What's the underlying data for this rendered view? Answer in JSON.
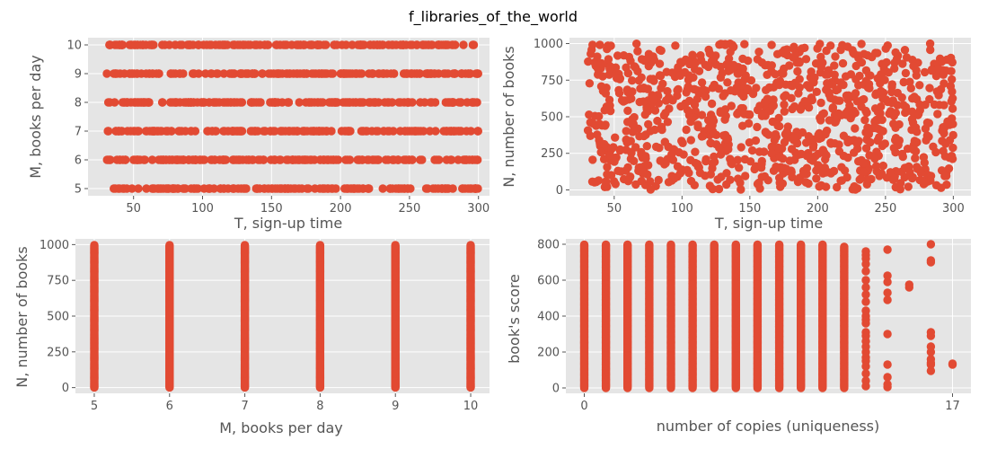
{
  "figure": {
    "title": "f_libraries_of_the_world"
  },
  "colors": {
    "marker": "#E24A33",
    "panel": "#e5e5e5",
    "grid": "#ffffff",
    "text": "#555555"
  },
  "chart_data": [
    {
      "type": "scatter",
      "title": "",
      "xlabel": "T, sign-up time",
      "ylabel": "M, books per day",
      "xlim": [
        17,
        308
      ],
      "ylim": [
        4.75,
        10.25
      ],
      "xticks": [
        50,
        100,
        150,
        200,
        250,
        300
      ],
      "yticks": [
        5,
        6,
        7,
        8,
        9,
        10
      ],
      "grid": true,
      "legend": "none",
      "x_range": [
        30,
        300
      ],
      "y_levels": [
        5,
        6,
        7,
        8,
        9,
        10
      ],
      "approx_points": 1000
    },
    {
      "type": "scatter",
      "title": "",
      "xlabel": "T, sign-up time",
      "ylabel": "N, number of books",
      "xlim": [
        17,
        313
      ],
      "ylim": [
        -40,
        1040
      ],
      "xticks": [
        50,
        100,
        150,
        200,
        250,
        300
      ],
      "yticks": [
        0,
        250,
        500,
        750,
        1000
      ],
      "grid": true,
      "legend": "none",
      "x_range": [
        30,
        300
      ],
      "y_range": [
        0,
        1000
      ],
      "approx_points": 1000
    },
    {
      "type": "scatter",
      "title": "",
      "xlabel": "M, books per day",
      "ylabel": "N, number of books",
      "xlim": [
        4.75,
        10.25
      ],
      "ylim": [
        -40,
        1040
      ],
      "xticks": [
        5,
        6,
        7,
        8,
        9,
        10
      ],
      "yticks": [
        0,
        250,
        500,
        750,
        1000
      ],
      "grid": true,
      "legend": "none",
      "x_levels": [
        5,
        6,
        7,
        8,
        9,
        10
      ],
      "y_range": [
        0,
        1000
      ],
      "approx_points": 1000
    },
    {
      "type": "scatter",
      "title": "",
      "xlabel": "number of copies (uniqueness)",
      "ylabel": "book's score",
      "xlim": [
        -0.85,
        17.85
      ],
      "ylim": [
        -30,
        830
      ],
      "xticks": [
        0,
        17
      ],
      "yticks": [
        0,
        200,
        400,
        600,
        800
      ],
      "grid": true,
      "legend": "none",
      "columns": [
        {
          "x": 0,
          "dense": true,
          "max": 800
        },
        {
          "x": 1,
          "dense": true,
          "max": 800
        },
        {
          "x": 2,
          "dense": true,
          "max": 800
        },
        {
          "x": 3,
          "dense": true,
          "max": 800
        },
        {
          "x": 4,
          "dense": true,
          "max": 800
        },
        {
          "x": 5,
          "dense": true,
          "max": 800
        },
        {
          "x": 6,
          "dense": true,
          "max": 800
        },
        {
          "x": 7,
          "dense": true,
          "max": 800
        },
        {
          "x": 8,
          "dense": true,
          "max": 800
        },
        {
          "x": 9,
          "dense": true,
          "max": 800
        },
        {
          "x": 10,
          "dense": true,
          "max": 800
        },
        {
          "x": 11,
          "dense": true,
          "max": 800
        },
        {
          "x": 12,
          "dense": true,
          "max": 790
        },
        {
          "x": 13,
          "dense": false,
          "values": [
            10,
            40,
            80,
            120,
            150,
            170,
            200,
            230,
            260,
            290,
            310,
            360,
            380,
            400,
            430,
            480,
            520,
            560,
            600,
            650,
            690,
            720,
            740,
            760
          ]
        },
        {
          "x": 14,
          "dense": false,
          "values": [
            5,
            20,
            60,
            130,
            300,
            490,
            530,
            590,
            625,
            770
          ]
        },
        {
          "x": 15,
          "dense": false,
          "values": [
            560,
            575
          ]
        },
        {
          "x": 16,
          "dense": false,
          "values": [
            95,
            130,
            140,
            160,
            200,
            230,
            290,
            310,
            700,
            710,
            800
          ]
        },
        {
          "x": 17,
          "dense": false,
          "values": [
            130,
            135
          ]
        }
      ]
    }
  ]
}
